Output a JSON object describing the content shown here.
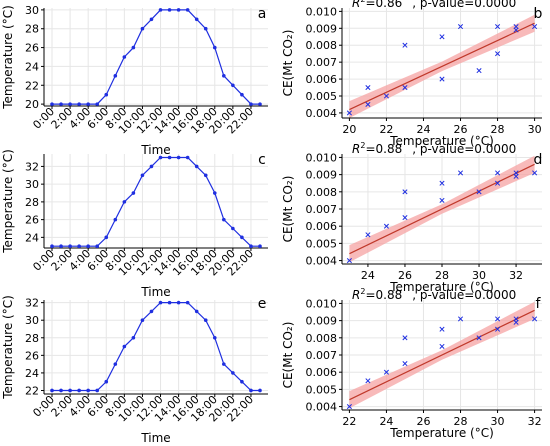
{
  "charts": [
    {
      "id": "a",
      "kind": "temp",
      "panel_label": "a",
      "xlabel": "Time",
      "ylabel": "Temperature (°C)",
      "ylim": [
        19.8,
        30.2
      ],
      "yticks": [
        "20",
        "22",
        "24",
        "26",
        "28",
        "30"
      ],
      "times": [
        "0:00",
        "1:00",
        "2:00",
        "3:00",
        "4:00",
        "5:00",
        "6:00",
        "7:00",
        "8:00",
        "9:00",
        "10:00",
        "11:00",
        "12:00",
        "13:00",
        "14:00",
        "15:00",
        "16:00",
        "17:00",
        "18:00",
        "19:00",
        "20:00",
        "21:00",
        "22:00",
        "23:00"
      ],
      "xticks": [
        "0:00",
        "2:00",
        "4:00",
        "6:00",
        "8:00",
        "10:00",
        "12:00",
        "14:00",
        "16:00",
        "18:00",
        "20:00",
        "22:00"
      ],
      "values": [
        20,
        20,
        20,
        20,
        20,
        20,
        21,
        23,
        25,
        26,
        28,
        29,
        30,
        30,
        30,
        30,
        29,
        28,
        26,
        23,
        22,
        21,
        20,
        20
      ],
      "color": "#1f2fe0"
    },
    {
      "id": "b",
      "kind": "scatter",
      "panel_label": "b",
      "xlabel": "Temperature (°C)",
      "ylabel": "CE(Mt CO₂)",
      "r2_label": "R",
      "r2_sup": "2",
      "r2_value": "=0.86",
      "pvalue_text": ", p-value=0.0000",
      "xlim": [
        19.6,
        30.4
      ],
      "xticks": [
        "20",
        "22",
        "24",
        "26",
        "28",
        "30"
      ],
      "ylim": [
        0.0037,
        0.0102
      ],
      "yticks": [
        "0.004",
        "0.005",
        "0.006",
        "0.007",
        "0.008",
        "0.009",
        "0.010"
      ],
      "x": [
        20,
        21,
        21,
        22,
        23,
        23,
        25,
        25,
        26,
        27,
        28,
        28,
        29,
        29,
        30
      ],
      "y": [
        0.004,
        0.0045,
        0.0055,
        0.005,
        0.0055,
        0.008,
        0.006,
        0.0085,
        0.0091,
        0.0065,
        0.0075,
        0.0091,
        0.0089,
        0.0091,
        0.0091
      ],
      "fit": [
        0.0042,
        0.0093
      ],
      "point_color": "#1f2fe0",
      "fit_color": "#c0392b",
      "band_color": "#f5a3a3"
    },
    {
      "id": "c",
      "kind": "temp",
      "panel_label": "c",
      "xlabel": "Time",
      "ylabel": "Temperature (°C)",
      "ylim": [
        22.8,
        33.4
      ],
      "yticks": [
        "24",
        "26",
        "28",
        "30",
        "32"
      ],
      "times": [
        "0:00",
        "1:00",
        "2:00",
        "3:00",
        "4:00",
        "5:00",
        "6:00",
        "7:00",
        "8:00",
        "9:00",
        "10:00",
        "11:00",
        "12:00",
        "13:00",
        "14:00",
        "15:00",
        "16:00",
        "17:00",
        "18:00",
        "19:00",
        "20:00",
        "21:00",
        "22:00",
        "23:00"
      ],
      "xticks": [
        "0:00",
        "2:00",
        "4:00",
        "6:00",
        "8:00",
        "10:00",
        "12:00",
        "14:00",
        "16:00",
        "18:00",
        "20:00",
        "22:00"
      ],
      "values": [
        23,
        23,
        23,
        23,
        23,
        23,
        24,
        26,
        28,
        29,
        31,
        32,
        33,
        33,
        33,
        33,
        32,
        31,
        29,
        26,
        25,
        24,
        23,
        23
      ],
      "color": "#1f2fe0"
    },
    {
      "id": "d",
      "kind": "scatter",
      "panel_label": "d",
      "xlabel": "Temperature (°C)",
      "ylabel": "CE(Mt CO₂)",
      "r2_label": "R",
      "r2_sup": "2",
      "r2_value": "=0.88",
      "pvalue_text": ", p-value=0.0000",
      "xlim": [
        22.6,
        33.4
      ],
      "xticks": [
        "24",
        "26",
        "28",
        "30",
        "32"
      ],
      "ylim": [
        0.0038,
        0.0102
      ],
      "yticks": [
        "0.004",
        "0.005",
        "0.006",
        "0.007",
        "0.008",
        "0.009",
        "0.010"
      ],
      "x": [
        23,
        24,
        25,
        26,
        26,
        28,
        28,
        29,
        30,
        31,
        31,
        32,
        32,
        33
      ],
      "y": [
        0.004,
        0.0055,
        0.006,
        0.0065,
        0.008,
        0.0075,
        0.0085,
        0.0091,
        0.008,
        0.0085,
        0.0091,
        0.0089,
        0.0091,
        0.0091
      ],
      "fit": [
        0.0044,
        0.0096
      ],
      "point_color": "#1f2fe0",
      "fit_color": "#c0392b",
      "band_color": "#f5a3a3"
    },
    {
      "id": "e",
      "kind": "temp",
      "panel_label": "e",
      "xlabel": "Time",
      "ylabel": "Temperature (°C)",
      "ylim": [
        21.6,
        32.3
      ],
      "yticks": [
        "22",
        "24",
        "26",
        "28",
        "30",
        "32"
      ],
      "times": [
        "0:00",
        "1:00",
        "2:00",
        "3:00",
        "4:00",
        "5:00",
        "6:00",
        "7:00",
        "8:00",
        "9:00",
        "10:00",
        "11:00",
        "12:00",
        "13:00",
        "14:00",
        "15:00",
        "16:00",
        "17:00",
        "18:00",
        "19:00",
        "20:00",
        "21:00",
        "22:00",
        "23:00"
      ],
      "xticks": [
        "0:00",
        "2:00",
        "4:00",
        "6:00",
        "8:00",
        "10:00",
        "12:00",
        "14:00",
        "16:00",
        "18:00",
        "20:00",
        "22:00"
      ],
      "values": [
        22,
        22,
        22,
        22,
        22,
        22,
        23,
        25,
        27,
        28,
        30,
        31,
        32,
        32,
        32,
        32,
        31,
        30,
        28,
        25,
        24,
        23,
        22,
        22
      ],
      "color": "#1f2fe0"
    },
    {
      "id": "f",
      "kind": "scatter",
      "panel_label": "f",
      "xlabel": "Temperature (°C)",
      "ylabel": "CE(Mt CO₂)",
      "r2_label": "R",
      "r2_sup": "2",
      "r2_value": "=0.88",
      "pvalue_text": ", p-value=0.0000",
      "xlim": [
        21.6,
        32.4
      ],
      "xticks": [
        "22",
        "24",
        "26",
        "28",
        "30",
        "32"
      ],
      "ylim": [
        0.0038,
        0.0102
      ],
      "yticks": [
        "0.004",
        "0.005",
        "0.006",
        "0.007",
        "0.008",
        "0.009",
        "0.010"
      ],
      "x": [
        22,
        23,
        24,
        25,
        25,
        27,
        27,
        28,
        29,
        30,
        30,
        31,
        31,
        32
      ],
      "y": [
        0.004,
        0.0055,
        0.006,
        0.0065,
        0.008,
        0.0075,
        0.0085,
        0.0091,
        0.008,
        0.0085,
        0.0091,
        0.0089,
        0.0091,
        0.0091
      ],
      "fit": [
        0.0044,
        0.0096
      ],
      "point_color": "#1f2fe0",
      "fit_color": "#c0392b",
      "band_color": "#f5a3a3"
    }
  ],
  "theme": {
    "grid": "#e6e6e6",
    "axis": "#000000"
  }
}
